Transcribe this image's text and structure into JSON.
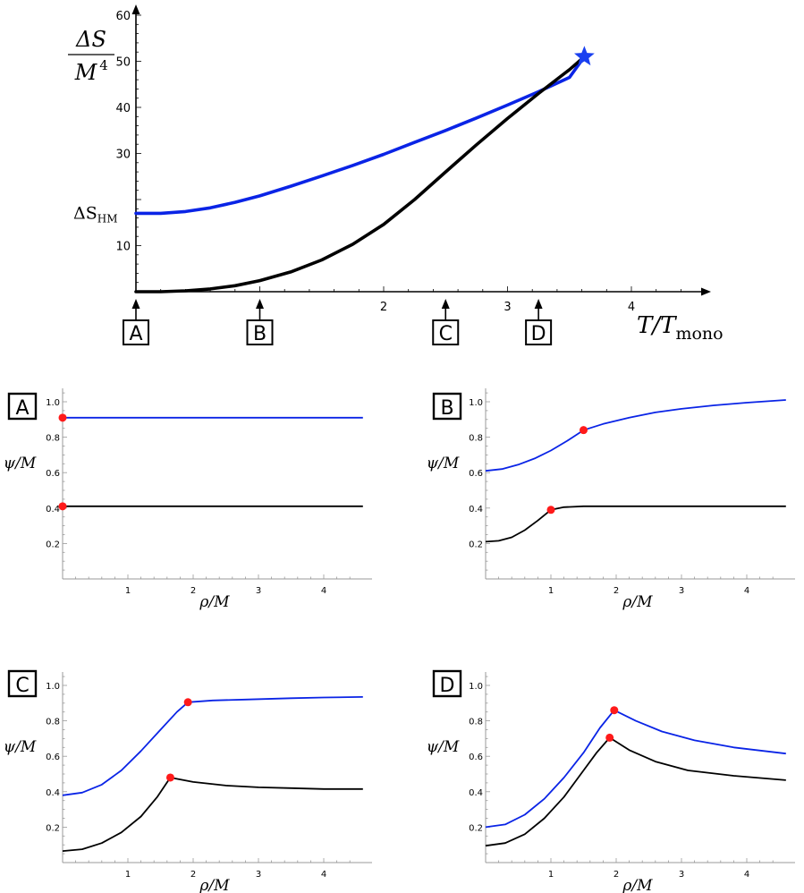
{
  "chart_data": [
    {
      "type": "line",
      "panel": "main",
      "ylabel_num": "ΔS",
      "ylabel_den": "M",
      "ylabel_den_exp": "4",
      "xlabel_main": "T/T",
      "xlabel_sub": "mono",
      "ytick_special": "ΔS",
      "ytick_special_sub": "HM",
      "ytick_special_value": 17,
      "xlim": [
        0,
        4.6
      ],
      "ylim": [
        0,
        61
      ],
      "xticks": [
        2,
        3,
        4
      ],
      "yticks": [
        10,
        20,
        30,
        40,
        50,
        60
      ],
      "ytick_labels": [
        "10",
        "",
        "30",
        "40",
        "50",
        "60"
      ],
      "series": [
        {
          "color": "#0a24e6",
          "x": [
            0.0,
            0.2,
            0.4,
            0.6,
            0.8,
            1.0,
            1.25,
            1.5,
            1.75,
            2.0,
            2.25,
            2.5,
            2.75,
            3.0,
            3.25,
            3.5,
            3.62
          ],
          "y": [
            17.0,
            17.0,
            17.4,
            18.2,
            19.4,
            20.8,
            22.9,
            25.1,
            27.4,
            29.8,
            32.4,
            35.0,
            37.7,
            40.5,
            43.4,
            46.5,
            51.0
          ]
        },
        {
          "color": "#000000",
          "x": [
            0.0,
            0.2,
            0.4,
            0.6,
            0.8,
            1.0,
            1.25,
            1.5,
            1.75,
            2.0,
            2.25,
            2.5,
            2.75,
            3.0,
            3.25,
            3.5,
            3.62
          ],
          "y": [
            0.0,
            0.0,
            0.2,
            0.6,
            1.3,
            2.4,
            4.3,
            6.9,
            10.3,
            14.6,
            20.0,
            26.0,
            31.9,
            37.6,
            43.0,
            48.2,
            51.0
          ]
        }
      ],
      "star": {
        "x": 3.62,
        "y": 51.0,
        "color": "#1a40f0"
      },
      "markers": [
        {
          "label": "A",
          "x": 0.0
        },
        {
          "label": "B",
          "x": 1.0
        },
        {
          "label": "C",
          "x": 2.5
        },
        {
          "label": "D",
          "x": 3.25
        }
      ]
    },
    {
      "type": "line",
      "panel": "A",
      "xlabel": "ρ/M",
      "ylabel": "ψ/M",
      "xlim": [
        0,
        4.6
      ],
      "ylim": [
        0,
        1.07
      ],
      "xticks": [
        1,
        2,
        3,
        4
      ],
      "yticks": [
        0.2,
        0.4,
        0.6,
        0.8,
        1.0
      ],
      "ytick_labels": [
        "0.2",
        "0.4",
        "0.6",
        "0.8",
        "1.0"
      ],
      "series": [
        {
          "color": "#0a24e6",
          "x": [
            0,
            4.6
          ],
          "y": [
            0.91,
            0.91
          ]
        },
        {
          "color": "#000000",
          "x": [
            0,
            4.6
          ],
          "y": [
            0.41,
            0.41
          ]
        }
      ],
      "points": [
        {
          "x": 0,
          "y": 0.91
        },
        {
          "x": 0,
          "y": 0.41
        }
      ]
    },
    {
      "type": "line",
      "panel": "B",
      "xlabel": "ρ/M",
      "ylabel": "ψ/M",
      "xlim": [
        0,
        4.6
      ],
      "ylim": [
        0,
        1.07
      ],
      "xticks": [
        1,
        2,
        3,
        4
      ],
      "yticks": [
        0.2,
        0.4,
        0.6,
        0.8,
        1.0
      ],
      "ytick_labels": [
        "0.2",
        "0.4",
        "0.6",
        "0.8",
        "1.0"
      ],
      "series": [
        {
          "color": "#0a24e6",
          "x": [
            0,
            0.25,
            0.5,
            0.75,
            1.0,
            1.25,
            1.5,
            1.8,
            2.2,
            2.6,
            3.0,
            3.5,
            4.0,
            4.6
          ],
          "y": [
            0.61,
            0.62,
            0.645,
            0.68,
            0.725,
            0.78,
            0.84,
            0.875,
            0.91,
            0.94,
            0.96,
            0.98,
            0.995,
            1.01
          ]
        },
        {
          "color": "#000000",
          "x": [
            0,
            0.2,
            0.4,
            0.6,
            0.8,
            1.0,
            1.2,
            1.5,
            2.0,
            2.5,
            3.0,
            4.0,
            4.6
          ],
          "y": [
            0.21,
            0.215,
            0.235,
            0.275,
            0.33,
            0.39,
            0.405,
            0.41,
            0.41,
            0.41,
            0.41,
            0.41,
            0.41
          ]
        }
      ],
      "points": [
        {
          "x": 1.5,
          "y": 0.84
        },
        {
          "x": 1.0,
          "y": 0.39
        }
      ]
    },
    {
      "type": "line",
      "panel": "C",
      "xlabel": "ρ/M",
      "ylabel": "ψ/M",
      "xlim": [
        0,
        4.6
      ],
      "ylim": [
        0,
        1.07
      ],
      "xticks": [
        1,
        2,
        3,
        4
      ],
      "yticks": [
        0.2,
        0.4,
        0.6,
        0.8,
        1.0
      ],
      "ytick_labels": [
        "0.2",
        "0.4",
        "0.6",
        "0.8",
        "1.0"
      ],
      "series": [
        {
          "color": "#0a24e6",
          "x": [
            0,
            0.3,
            0.6,
            0.9,
            1.2,
            1.5,
            1.75,
            1.92,
            2.3,
            2.8,
            3.5,
            4.0,
            4.6
          ],
          "y": [
            0.38,
            0.395,
            0.44,
            0.52,
            0.63,
            0.75,
            0.85,
            0.905,
            0.915,
            0.92,
            0.928,
            0.932,
            0.935
          ]
        },
        {
          "color": "#000000",
          "x": [
            0,
            0.3,
            0.6,
            0.9,
            1.2,
            1.45,
            1.65,
            2.0,
            2.5,
            3.0,
            3.5,
            4.0,
            4.6
          ],
          "y": [
            0.065,
            0.075,
            0.11,
            0.17,
            0.26,
            0.37,
            0.48,
            0.455,
            0.435,
            0.425,
            0.42,
            0.415,
            0.415
          ]
        }
      ],
      "points": [
        {
          "x": 1.92,
          "y": 0.905
        },
        {
          "x": 1.65,
          "y": 0.48
        }
      ]
    },
    {
      "type": "line",
      "panel": "D",
      "xlabel": "ρ/M",
      "ylabel": "ψ/M",
      "xlim": [
        0,
        4.6
      ],
      "ylim": [
        0,
        1.07
      ],
      "xticks": [
        1,
        2,
        3,
        4
      ],
      "yticks": [
        0.2,
        0.4,
        0.6,
        0.8,
        1.0
      ],
      "ytick_labels": [
        "0.2",
        "0.4",
        "0.6",
        "0.8",
        "1.0"
      ],
      "series": [
        {
          "color": "#0a24e6",
          "x": [
            0,
            0.3,
            0.6,
            0.9,
            1.2,
            1.5,
            1.75,
            1.97,
            2.3,
            2.7,
            3.2,
            3.8,
            4.6
          ],
          "y": [
            0.2,
            0.215,
            0.27,
            0.36,
            0.48,
            0.62,
            0.76,
            0.86,
            0.8,
            0.74,
            0.69,
            0.65,
            0.615
          ]
        },
        {
          "color": "#000000",
          "x": [
            0,
            0.3,
            0.6,
            0.9,
            1.2,
            1.5,
            1.7,
            1.9,
            2.2,
            2.6,
            3.1,
            3.8,
            4.6
          ],
          "y": [
            0.095,
            0.11,
            0.16,
            0.25,
            0.37,
            0.52,
            0.62,
            0.705,
            0.635,
            0.57,
            0.52,
            0.49,
            0.465
          ]
        }
      ],
      "points": [
        {
          "x": 1.97,
          "y": 0.86
        },
        {
          "x": 1.9,
          "y": 0.705
        }
      ]
    }
  ]
}
